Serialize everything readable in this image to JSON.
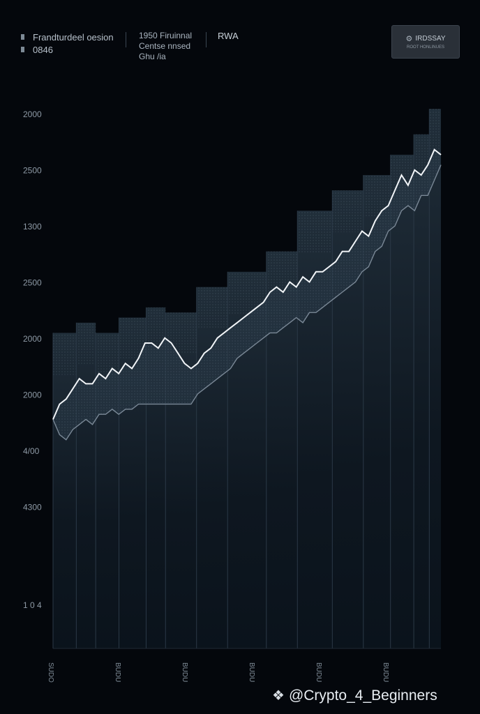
{
  "header": {
    "legend_title": "Frandturdeel oesion",
    "legend_sub": "0846",
    "mid_line1": "1950 Firuinnal",
    "mid_line2": "Centse nnsed",
    "mid_line3": "Ghu /ia",
    "rwa_label": "RWA",
    "button_label": "IRDSSAY",
    "button_sub": "ROOT HONLINUES",
    "button_icon": "settings-icon"
  },
  "watermark": {
    "text": "@Crypto_4_Beginners",
    "icon": "binance-logo"
  },
  "colors": {
    "background": "#04070c",
    "line": "#f2f5f8",
    "band_fill": "#22303c",
    "block_fill": "#1a2530",
    "lower_line": "#7a8896"
  },
  "chart_data": {
    "type": "line",
    "title": "",
    "xlabel": "",
    "ylabel": "",
    "y_tick_labels": [
      "2000",
      "2500",
      "1300",
      "2500",
      "2000",
      "2000",
      "4/00",
      "4300",
      "1 0 4"
    ],
    "x_tick_labels": [
      "SUDO",
      "BUDU",
      "BUDU",
      "BUDU",
      "BUDU",
      "BUDU"
    ],
    "ylim": [
      0,
      100
    ],
    "series": [
      {
        "values": [
          45,
          48,
          49,
          51,
          53,
          52,
          52,
          54,
          53,
          55,
          54,
          56,
          55,
          57,
          60,
          60,
          59,
          61,
          60,
          58,
          56,
          55,
          56,
          58,
          59,
          61,
          62,
          63,
          64,
          65,
          66,
          67,
          68,
          70,
          71,
          70,
          72,
          71,
          73,
          72,
          74,
          74,
          75,
          76,
          78,
          78,
          80,
          82,
          81,
          84,
          86,
          87,
          90,
          93,
          91,
          94,
          93,
          95,
          98,
          97
        ]
      },
      {
        "values": [
          45,
          42,
          41,
          43,
          44,
          45,
          44,
          46,
          46,
          47,
          46,
          47,
          47,
          48,
          48,
          48,
          48,
          48,
          48,
          48,
          48,
          48,
          50,
          51,
          52,
          53,
          54,
          55,
          57,
          58,
          59,
          60,
          61,
          62,
          62,
          63,
          64,
          65,
          64,
          66,
          66,
          67,
          68,
          69,
          70,
          71,
          72,
          74,
          75,
          78,
          79,
          82,
          83,
          86,
          87,
          86,
          89,
          89,
          92,
          95
        ]
      }
    ],
    "blocks": [
      {
        "x0": 0.0,
        "x1": 0.06,
        "top": 62
      },
      {
        "x0": 0.06,
        "x1": 0.11,
        "top": 64
      },
      {
        "x0": 0.11,
        "x1": 0.17,
        "top": 62
      },
      {
        "x0": 0.17,
        "x1": 0.24,
        "top": 65
      },
      {
        "x0": 0.24,
        "x1": 0.29,
        "top": 67
      },
      {
        "x0": 0.29,
        "x1": 0.37,
        "top": 66
      },
      {
        "x0": 0.37,
        "x1": 0.45,
        "top": 71
      },
      {
        "x0": 0.45,
        "x1": 0.55,
        "top": 74
      },
      {
        "x0": 0.55,
        "x1": 0.63,
        "top": 78
      },
      {
        "x0": 0.63,
        "x1": 0.72,
        "top": 86
      },
      {
        "x0": 0.72,
        "x1": 0.8,
        "top": 90
      },
      {
        "x0": 0.8,
        "x1": 0.87,
        "top": 93
      },
      {
        "x0": 0.87,
        "x1": 0.93,
        "top": 97
      },
      {
        "x0": 0.93,
        "x1": 0.97,
        "top": 101
      },
      {
        "x0": 0.97,
        "x1": 1.0,
        "top": 106
      }
    ],
    "grid": true,
    "legend": "top-left"
  }
}
